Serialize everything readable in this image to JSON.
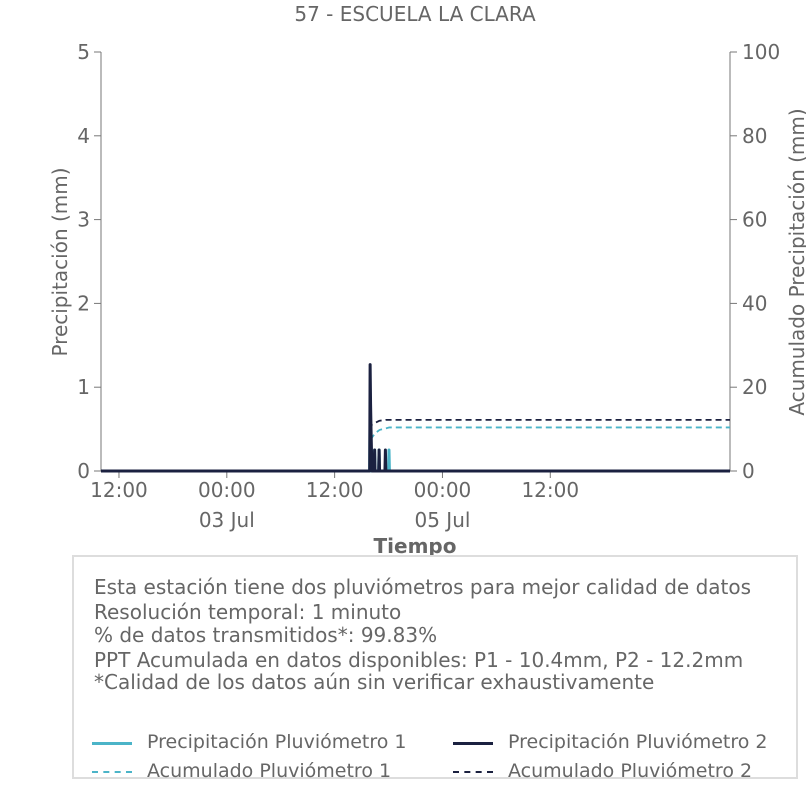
{
  "chart_data": {
    "type": "line",
    "title": "57 - ESCUELA LA CLARA",
    "xlabel": "Tiempo",
    "ylabel": "Precipitación (mm)",
    "y2label": "Acumulado Precipitación (mm)",
    "ylim": [
      0,
      5
    ],
    "y2lim": [
      0,
      100
    ],
    "yticks": [
      "0",
      "1",
      "2",
      "3",
      "4",
      "5"
    ],
    "y2ticks": [
      "0",
      "20",
      "40",
      "60",
      "80",
      "100"
    ],
    "xlim_hours": [
      -14,
      56
    ],
    "xticks": [
      {
        "hour": -12,
        "label": "12:00",
        "sub": ""
      },
      {
        "hour": 0,
        "label": "00:00",
        "sub": "03 Jul"
      },
      {
        "hour": 12,
        "label": "12:00",
        "sub": ""
      },
      {
        "hour": 24,
        "label": "00:00",
        "sub": "05 Jul"
      },
      {
        "hour": 36,
        "label": "12:00",
        "sub": ""
      }
    ],
    "grid": false,
    "series": [
      {
        "name": "Precipitación Pluviómetro 1",
        "axis": "left",
        "style": "solid",
        "color": "#4bb4c8",
        "x": [
          -14,
          15.9,
          15.95,
          16.0,
          16.05,
          16.4,
          16.45,
          16.5,
          16.9,
          16.95,
          17.0,
          18.0,
          18.05,
          18.1,
          56
        ],
        "y": [
          0,
          0,
          0.7,
          0.5,
          0,
          0,
          0.25,
          0,
          0,
          0.25,
          0,
          0,
          0.25,
          0,
          0
        ]
      },
      {
        "name": "Precipitación Pluviómetro 2",
        "axis": "left",
        "style": "solid",
        "color": "#1b2140",
        "x": [
          -14,
          15.9,
          15.95,
          16.0,
          16.05,
          16.1,
          16.15,
          16.4,
          16.45,
          16.5,
          16.9,
          16.95,
          17.0,
          17.6,
          17.65,
          17.7,
          56
        ],
        "y": [
          0,
          0,
          1.27,
          0.8,
          0.5,
          0.25,
          0,
          0,
          0.25,
          0,
          0,
          0.25,
          0,
          0,
          0.25,
          0,
          0
        ]
      },
      {
        "name": "Acumulado Pluviómetro 1",
        "axis": "right",
        "style": "dashed",
        "color": "#4bb4c8",
        "x": [
          -14,
          15.9,
          16.0,
          16.5,
          17.0,
          18.1,
          56
        ],
        "y": [
          0,
          0,
          7.5,
          9.0,
          9.8,
          10.4,
          10.4
        ]
      },
      {
        "name": "Acumulado Pluviómetro 2",
        "axis": "right",
        "style": "dashed",
        "color": "#1b2140",
        "x": [
          -14,
          15.9,
          16.0,
          16.1,
          16.5,
          17.0,
          17.7,
          56
        ],
        "y": [
          0,
          0,
          9.0,
          11.0,
          11.5,
          12.0,
          12.2,
          12.2
        ]
      }
    ]
  },
  "info": {
    "line1": "Esta estación tiene dos pluviómetros para mejor calidad de datos",
    "line2": "Resolución temporal: 1 minuto",
    "line3": "% de datos transmitidos*: 99.83%",
    "line4": "PPT Acumulada en datos disponibles: P1 - 10.4mm, P2 - 12.2mm",
    "line5": "*Calidad de los datos aún sin verificar exhaustivamente"
  },
  "legend": {
    "p1": "Precipitación Pluviómetro 1",
    "p2": "Precipitación Pluviómetro 2",
    "a1": "Acumulado Pluviómetro 1",
    "a2": "Acumulado Pluviómetro 2"
  },
  "colors": {
    "light": "#4bb4c8",
    "dark": "#1b2140",
    "text": "#666666"
  }
}
